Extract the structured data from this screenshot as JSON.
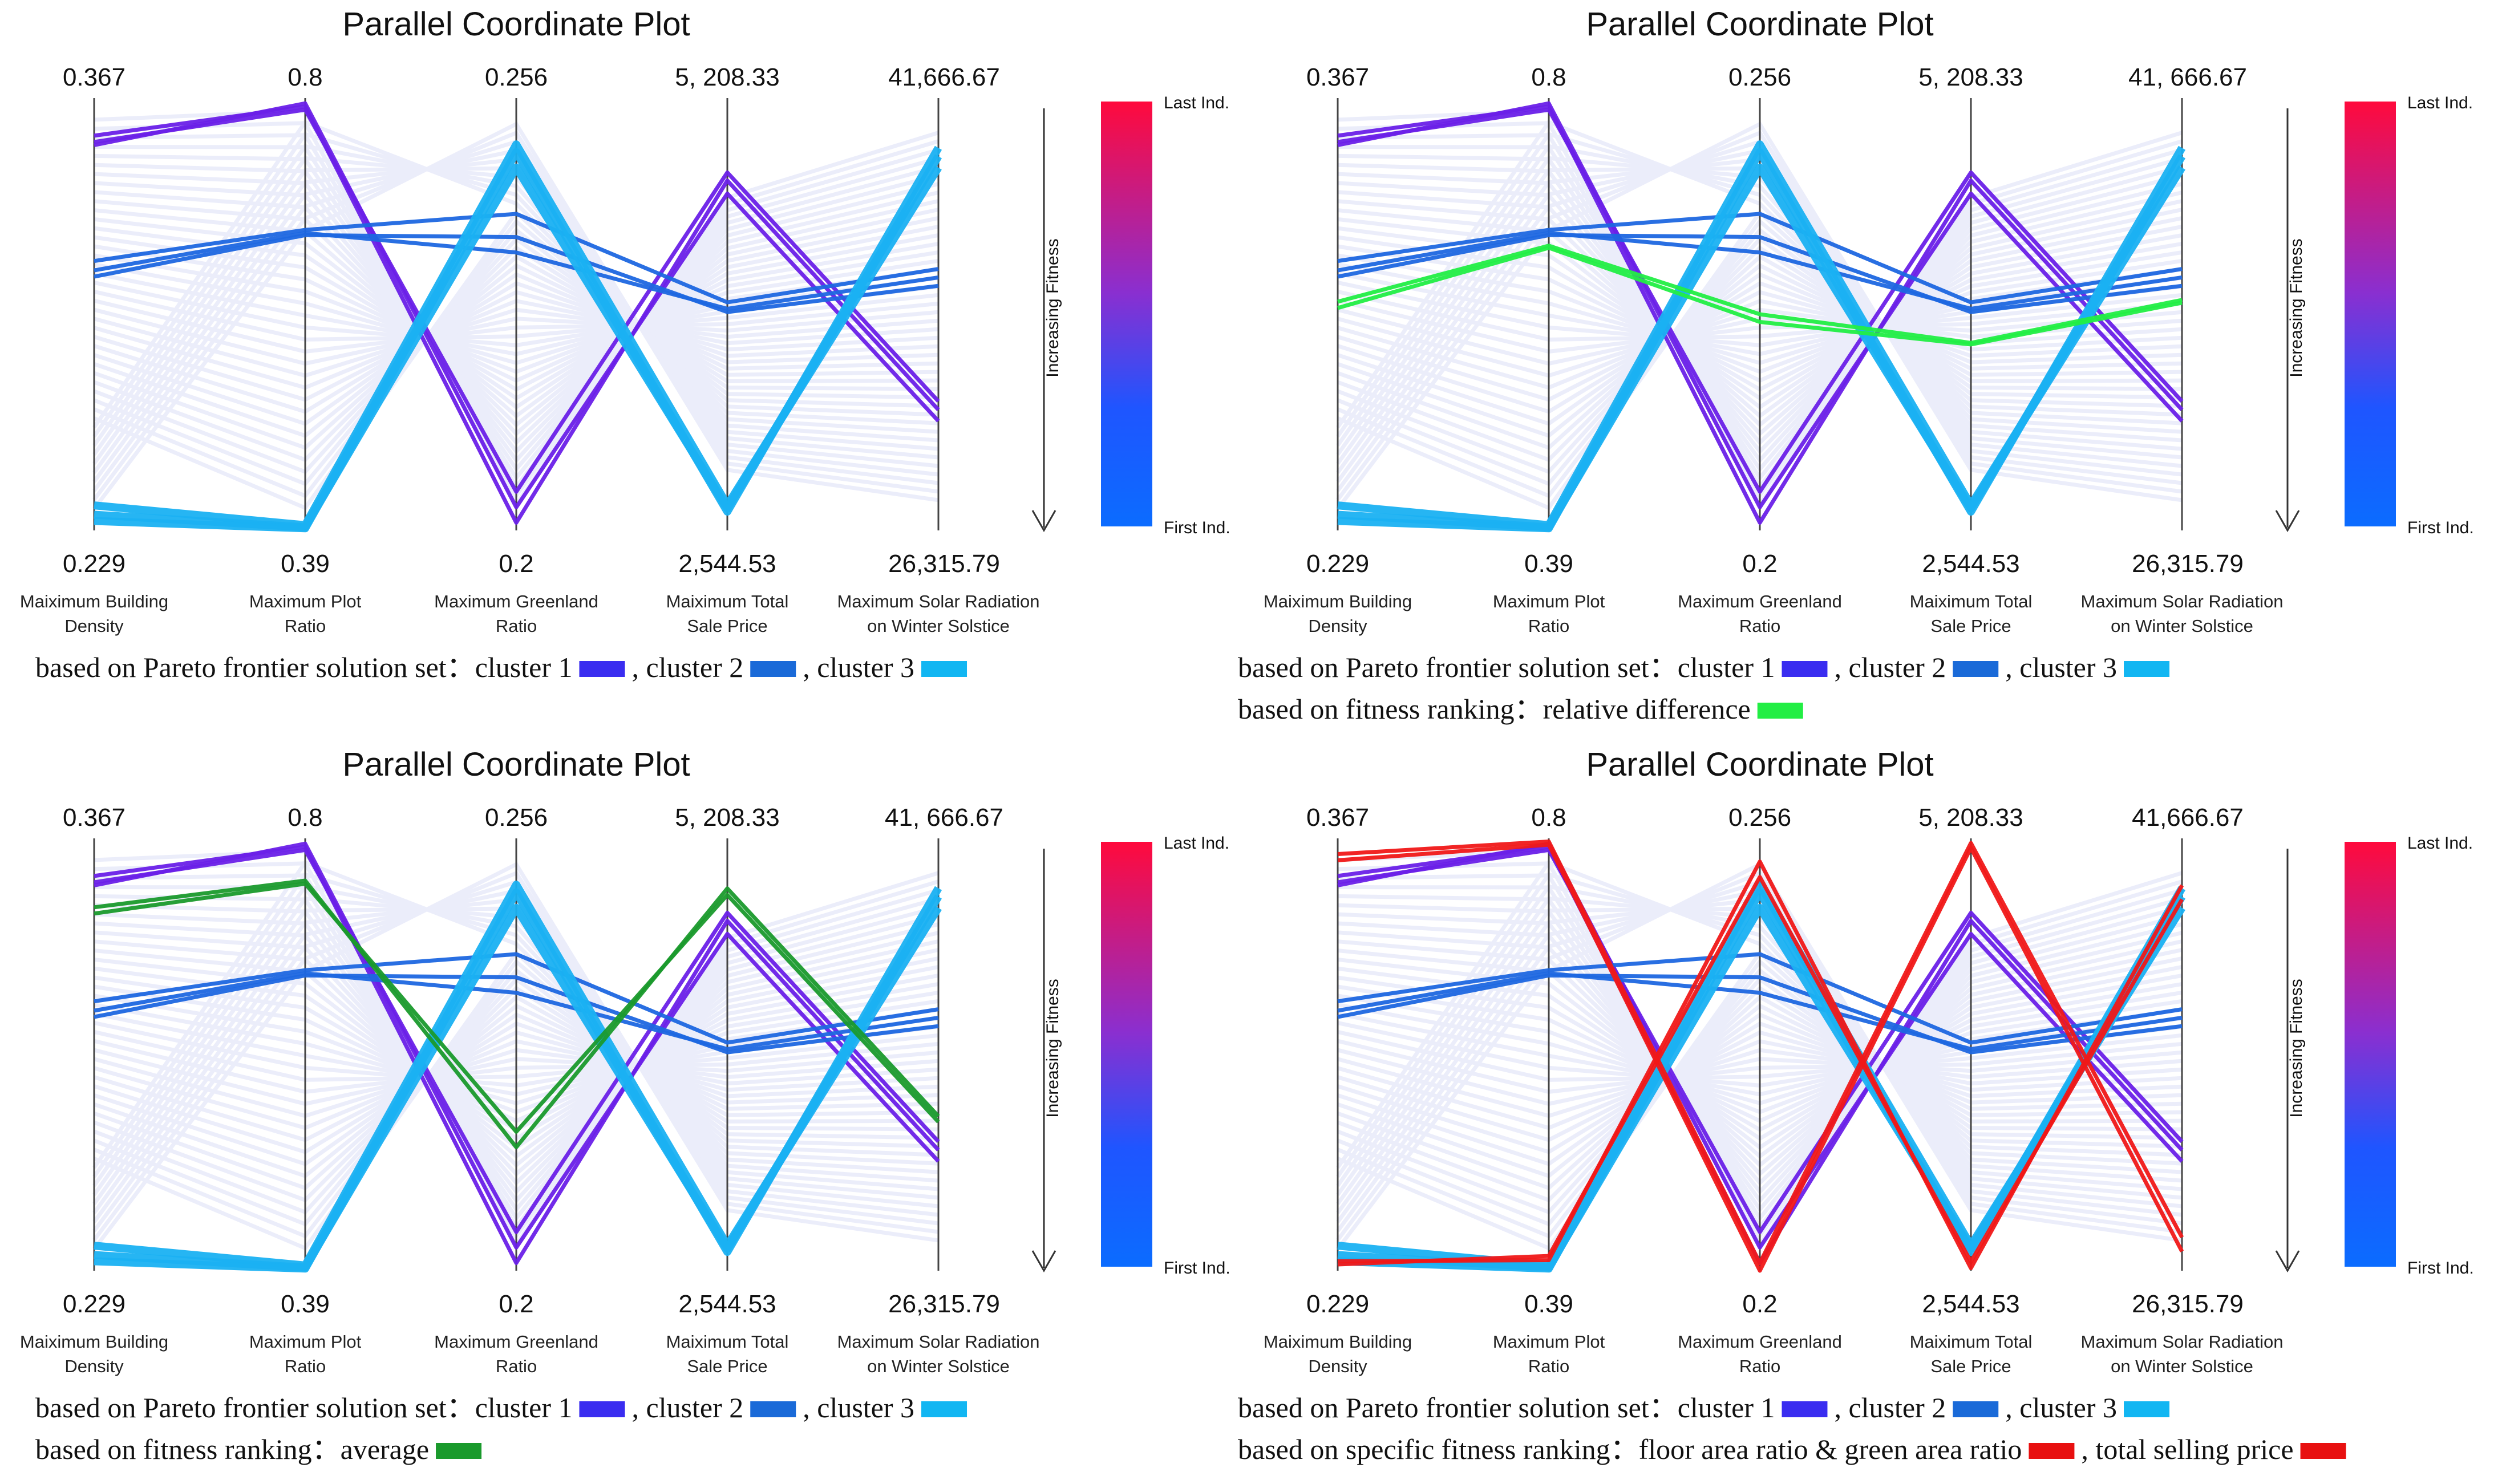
{
  "chart_data": [
    {
      "type": "parallel_coordinates",
      "title": "Parallel Coordinate Plot",
      "axes": [
        {
          "name": "Maiximum Building Density",
          "max_label": "0.367",
          "min_label": "0.229",
          "max": 0.367,
          "min": 0.229
        },
        {
          "name": "Maximum Plot Ratio",
          "max_label": "0.8",
          "min_label": "0.39",
          "max": 0.8,
          "min": 0.39
        },
        {
          "name": "Maximum Greenland Ratio",
          "max_label": "0.256",
          "min_label": "0.2",
          "max": 0.256,
          "min": 0.2
        },
        {
          "name": "Maiximum Total Sale Price",
          "max_label": "5, 208.33",
          "min_label": "2,544.53",
          "max": 5208.33,
          "min": 2544.53
        },
        {
          "name": "Maximum Solar Radiation on Winter Solstice",
          "max_label": "41,666.67",
          "min_label": "26,315.79",
          "max": 41666.67,
          "min": 26315.79
        }
      ],
      "colorbar": {
        "top_label": "Last Ind.",
        "bottom_label": "First Ind.",
        "arrow_label": "Increasing Fitness",
        "colors": [
          "#ff0a3c",
          "#8a2fd0",
          "#1f55ff",
          "#0b6cff"
        ]
      },
      "series": [
        {
          "name": "cluster 1",
          "color": "#6a20e8",
          "values": [
            [
              0.355,
              0.792,
              0.201,
              4700,
              30600
            ],
            [
              0.352,
              0.795,
              0.203,
              4620,
              30200
            ],
            [
              0.353,
              0.789,
              0.205,
              4750,
              30900
            ]
          ]
        },
        {
          "name": "cluster 2",
          "color": "#1e67e0",
          "values": [
            [
              0.315,
              0.675,
              0.241,
              3950,
              35600
            ],
            [
              0.312,
              0.672,
              0.236,
              3910,
              35300
            ],
            [
              0.31,
              0.67,
              0.238,
              3890,
              35000
            ]
          ]
        },
        {
          "name": "cluster 3",
          "color": "#1ab1f2",
          "values": [
            [
              0.237,
              0.395,
              0.25,
              2700,
              39200
            ],
            [
              0.234,
              0.393,
              0.247,
              2680,
              39600
            ],
            [
              0.232,
              0.392,
              0.249,
              2660,
              39900
            ]
          ]
        }
      ],
      "legend": [
        {
          "lead": "based on Pareto frontier solution set：",
          "items": [
            {
              "label": "cluster 1",
              "color": "#3a2df0"
            },
            {
              "label": ", cluster 2",
              "color": "#1a6ad8"
            },
            {
              "label": ",  cluster 3",
              "color": "#12b6f2"
            }
          ]
        }
      ]
    },
    {
      "type": "parallel_coordinates",
      "title": "Parallel Coordinate Plot",
      "axes": [
        {
          "name": "Maiximum Building Density",
          "max_label": "0.367",
          "min_label": "0.229",
          "max": 0.367,
          "min": 0.229
        },
        {
          "name": "Maximum Plot Ratio",
          "max_label": "0.8",
          "min_label": "0.39",
          "max": 0.8,
          "min": 0.39
        },
        {
          "name": "Maximum Greenland Ratio",
          "max_label": "0.256",
          "min_label": "0.2",
          "max": 0.256,
          "min": 0.2
        },
        {
          "name": "Maiximum Total Sale Price",
          "max_label": "5, 208.33",
          "min_label": "2,544.53",
          "max": 5208.33,
          "min": 2544.53
        },
        {
          "name": "Maximum Solar Radiation on Winter Solstice",
          "max_label": "41, 666.67",
          "min_label": "26,315.79",
          "max": 41666.67,
          "min": 26315.79
        }
      ],
      "colorbar": {
        "top_label": "Last Ind.",
        "bottom_label": "First Ind.",
        "arrow_label": "Increasing Fitness",
        "colors": [
          "#ff0a3c",
          "#8a2fd0",
          "#1f55ff",
          "#0b6cff"
        ]
      },
      "series": [
        {
          "name": "cluster 1",
          "color": "#6a20e8",
          "values": [
            [
              0.355,
              0.792,
              0.201,
              4700,
              30600
            ],
            [
              0.352,
              0.795,
              0.203,
              4620,
              30200
            ],
            [
              0.353,
              0.789,
              0.205,
              4750,
              30900
            ]
          ]
        },
        {
          "name": "cluster 2",
          "color": "#1e67e0",
          "values": [
            [
              0.315,
              0.675,
              0.241,
              3950,
              35600
            ],
            [
              0.312,
              0.672,
              0.236,
              3910,
              35300
            ],
            [
              0.31,
              0.67,
              0.238,
              3890,
              35000
            ]
          ]
        },
        {
          "name": "cluster 3",
          "color": "#1ab1f2",
          "values": [
            [
              0.237,
              0.395,
              0.25,
              2700,
              39200
            ],
            [
              0.234,
              0.393,
              0.247,
              2680,
              39600
            ],
            [
              0.232,
              0.392,
              0.249,
              2660,
              39900
            ]
          ]
        },
        {
          "name": "relative difference",
          "color": "#22ee44",
          "values": [
            [
              0.302,
              0.66,
              0.228,
              3700,
              34500
            ],
            [
              0.3,
              0.658,
              0.227,
              3690,
              34400
            ]
          ]
        }
      ],
      "legend": [
        {
          "lead": "based on Pareto frontier solution set：",
          "items": [
            {
              "label": "cluster 1",
              "color": "#3a2df0"
            },
            {
              "label": ", cluster 2",
              "color": "#1a6ad8"
            },
            {
              "label": ",  cluster 3",
              "color": "#12b6f2"
            }
          ]
        },
        {
          "lead": "based on fitness ranking：",
          "items": [
            {
              "label": "relative difference",
              "color": "#22ee44"
            }
          ]
        }
      ]
    },
    {
      "type": "parallel_coordinates",
      "title": "Parallel Coordinate Plot",
      "axes": [
        {
          "name": "Maiximum Building Density",
          "max_label": "0.367",
          "min_label": "0.229",
          "max": 0.367,
          "min": 0.229
        },
        {
          "name": "Maximum Plot Ratio",
          "max_label": "0.8",
          "min_label": "0.39",
          "max": 0.8,
          "min": 0.39
        },
        {
          "name": "Maximum Greenland Ratio",
          "max_label": "0.256",
          "min_label": "0.2",
          "max": 0.256,
          "min": 0.2
        },
        {
          "name": "Maiximum Total Sale Price",
          "max_label": "5, 208.33",
          "min_label": "2,544.53",
          "max": 5208.33,
          "min": 2544.53
        },
        {
          "name": "Maximum Solar Radiation on Winter Solstice",
          "max_label": "41, 666.67",
          "min_label": "26,315.79",
          "max": 41666.67,
          "min": 26315.79
        }
      ],
      "colorbar": {
        "top_label": "Last Ind.",
        "bottom_label": "First Ind.",
        "arrow_label": "Increasing Fitness",
        "colors": [
          "#ff0a3c",
          "#8a2fd0",
          "#1f55ff",
          "#0b6cff"
        ]
      },
      "series": [
        {
          "name": "cluster 1",
          "color": "#6a20e8",
          "values": [
            [
              0.355,
              0.792,
              0.201,
              4700,
              30600
            ],
            [
              0.352,
              0.795,
              0.203,
              4620,
              30200
            ],
            [
              0.353,
              0.789,
              0.205,
              4750,
              30900
            ]
          ]
        },
        {
          "name": "cluster 2",
          "color": "#1e67e0",
          "values": [
            [
              0.315,
              0.675,
              0.241,
              3950,
              35600
            ],
            [
              0.312,
              0.672,
              0.236,
              3910,
              35300
            ],
            [
              0.31,
              0.67,
              0.238,
              3890,
              35000
            ]
          ]
        },
        {
          "name": "cluster 3",
          "color": "#1ab1f2",
          "values": [
            [
              0.237,
              0.395,
              0.25,
              2700,
              39200
            ],
            [
              0.234,
              0.393,
              0.247,
              2680,
              39600
            ],
            [
              0.232,
              0.392,
              0.249,
              2660,
              39900
            ]
          ]
        },
        {
          "name": "average",
          "color": "#1a9a2c",
          "values": [
            [
              0.345,
              0.76,
              0.216,
              4900,
              31800
            ],
            [
              0.343,
              0.757,
              0.218,
              4860,
              31600
            ]
          ]
        }
      ],
      "legend": [
        {
          "lead": "based on Pareto frontier solution set：",
          "items": [
            {
              "label": "cluster 1",
              "color": "#3a2df0"
            },
            {
              "label": ", cluster 2",
              "color": "#1a6ad8"
            },
            {
              "label": ",  cluster 3",
              "color": "#12b6f2"
            }
          ]
        },
        {
          "lead": "based on fitness ranking：",
          "items": [
            {
              "label": "average",
              "color": "#1a9a2c"
            }
          ]
        }
      ]
    },
    {
      "type": "parallel_coordinates",
      "title": "Parallel Coordinate Plot",
      "axes": [
        {
          "name": "Maiximum Building Density",
          "max_label": "0.367",
          "min_label": "0.229",
          "max": 0.367,
          "min": 0.229
        },
        {
          "name": "Maximum Plot Ratio",
          "max_label": "0.8",
          "min_label": "0.39",
          "max": 0.8,
          "min": 0.39
        },
        {
          "name": "Maximum Greenland Ratio",
          "max_label": "0.256",
          "min_label": "0.2",
          "max": 0.256,
          "min": 0.2
        },
        {
          "name": "Maiximum Total Sale Price",
          "max_label": "5, 208.33",
          "min_label": "2,544.53",
          "max": 5208.33,
          "min": 2544.53
        },
        {
          "name": "Maximum Solar Radiation on Winter Solstice",
          "max_label": "41,666.67",
          "min_label": "26,315.79",
          "max": 41666.67,
          "min": 26315.79
        }
      ],
      "colorbar": {
        "top_label": "Last Ind.",
        "bottom_label": "First Ind.",
        "arrow_label": "Increasing Fitness",
        "colors": [
          "#ff0a3c",
          "#8a2fd0",
          "#1f55ff",
          "#0b6cff"
        ]
      },
      "series": [
        {
          "name": "cluster 1",
          "color": "#6a20e8",
          "values": [
            [
              0.355,
              0.792,
              0.201,
              4700,
              30600
            ],
            [
              0.352,
              0.795,
              0.203,
              4620,
              30200
            ],
            [
              0.353,
              0.789,
              0.205,
              4750,
              30900
            ]
          ]
        },
        {
          "name": "cluster 2",
          "color": "#1e67e0",
          "values": [
            [
              0.315,
              0.675,
              0.241,
              3950,
              35600
            ],
            [
              0.312,
              0.672,
              0.236,
              3910,
              35300
            ],
            [
              0.31,
              0.67,
              0.238,
              3890,
              35000
            ]
          ]
        },
        {
          "name": "cluster 3",
          "color": "#1ab1f2",
          "values": [
            [
              0.237,
              0.395,
              0.25,
              2700,
              39200
            ],
            [
              0.234,
              0.393,
              0.247,
              2680,
              39600
            ],
            [
              0.232,
              0.392,
              0.249,
              2660,
              39900
            ]
          ]
        },
        {
          "name": "floor area ratio & green area ratio",
          "color": "#f01818",
          "values": [
            [
              0.232,
              0.4,
              0.253,
              2560,
              40000
            ],
            [
              0.231,
              0.404,
              0.251,
              2600,
              39500
            ]
          ]
        },
        {
          "name": "total selling price",
          "color": "#f01818",
          "values": [
            [
              0.362,
              0.797,
              0.201,
              5180,
              27500
            ],
            [
              0.36,
              0.794,
              0.2,
              5150,
              27000
            ]
          ]
        }
      ],
      "legend": [
        {
          "lead": "based on Pareto frontier solution set：",
          "items": [
            {
              "label": "cluster 1",
              "color": "#3a2df0"
            },
            {
              "label": ", cluster 2",
              "color": "#1a6ad8"
            },
            {
              "label": ",  cluster 3",
              "color": "#12b6f2"
            }
          ]
        },
        {
          "lead": "based on specific fitness ranking：",
          "items": [
            {
              "label": "floor area ratio & green area ratio",
              "color": "#e81010"
            },
            {
              "label": ", total selling price",
              "color": "#e81010"
            }
          ]
        }
      ]
    }
  ]
}
